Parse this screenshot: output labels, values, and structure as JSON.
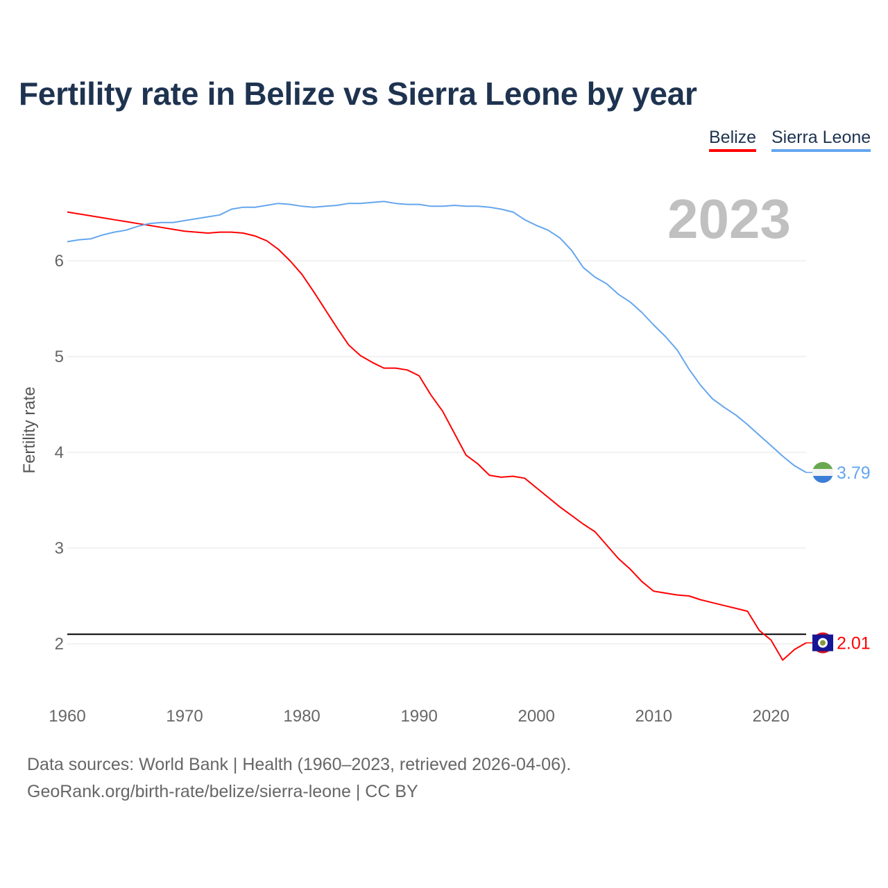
{
  "chart_data": {
    "type": "line",
    "title": "Fertility rate in Belize vs Sierra Leone by year",
    "xlabel": "",
    "ylabel": "Fertility rate",
    "xlim": [
      1960,
      2023
    ],
    "ylim": [
      1.5,
      7
    ],
    "x_ticks": [
      "1960",
      "1970",
      "1980",
      "1990",
      "2000",
      "2010",
      "2020"
    ],
    "y_ticks": [
      "2",
      "3",
      "4",
      "5",
      "6"
    ],
    "grid": true,
    "legend_position": "top-right",
    "current_year_label": "2023",
    "reference_line": {
      "y": 2.1,
      "color": "#000000"
    },
    "x": [
      1960,
      1961,
      1962,
      1963,
      1964,
      1965,
      1966,
      1967,
      1968,
      1969,
      1970,
      1971,
      1972,
      1973,
      1974,
      1975,
      1976,
      1977,
      1978,
      1979,
      1980,
      1981,
      1982,
      1983,
      1984,
      1985,
      1986,
      1987,
      1988,
      1989,
      1990,
      1991,
      1992,
      1993,
      1994,
      1995,
      1996,
      1997,
      1998,
      1999,
      2000,
      2001,
      2002,
      2003,
      2004,
      2005,
      2006,
      2007,
      2008,
      2009,
      2010,
      2011,
      2012,
      2013,
      2014,
      2015,
      2016,
      2017,
      2018,
      2019,
      2020,
      2021,
      2022,
      2023
    ],
    "series": [
      {
        "name": "Belize",
        "color": "#ff0000",
        "end_label": "2.01",
        "values": [
          6.51,
          6.49,
          6.47,
          6.45,
          6.43,
          6.41,
          6.39,
          6.37,
          6.35,
          6.33,
          6.31,
          6.3,
          6.29,
          6.3,
          6.3,
          6.29,
          6.26,
          6.21,
          6.12,
          6.0,
          5.86,
          5.68,
          5.49,
          5.3,
          5.12,
          5.01,
          4.94,
          4.88,
          4.88,
          4.86,
          4.8,
          4.6,
          4.43,
          4.2,
          3.97,
          3.88,
          3.76,
          3.74,
          3.75,
          3.73,
          3.63,
          3.53,
          3.43,
          3.34,
          3.25,
          3.17,
          3.03,
          2.89,
          2.78,
          2.65,
          2.55,
          2.53,
          2.51,
          2.5,
          2.46,
          2.43,
          2.4,
          2.37,
          2.34,
          2.14,
          2.04,
          1.83,
          1.94,
          2.01
        ]
      },
      {
        "name": "Sierra Leone",
        "color": "#64a6ee",
        "end_label": "3.79",
        "values": [
          6.2,
          6.22,
          6.23,
          6.27,
          6.3,
          6.32,
          6.36,
          6.39,
          6.4,
          6.4,
          6.42,
          6.44,
          6.46,
          6.48,
          6.54,
          6.56,
          6.56,
          6.58,
          6.6,
          6.59,
          6.57,
          6.56,
          6.57,
          6.58,
          6.6,
          6.6,
          6.61,
          6.62,
          6.6,
          6.59,
          6.59,
          6.57,
          6.57,
          6.58,
          6.57,
          6.57,
          6.56,
          6.54,
          6.51,
          6.43,
          6.37,
          6.32,
          6.24,
          6.11,
          5.93,
          5.83,
          5.76,
          5.65,
          5.57,
          5.46,
          5.33,
          5.21,
          5.07,
          4.87,
          4.7,
          4.56,
          4.47,
          4.39,
          4.29,
          4.18,
          4.07,
          3.96,
          3.86,
          3.79
        ]
      }
    ]
  },
  "footer": {
    "source": "Data sources: World Bank | Health (1960–2023, retrieved 2026-04-06).",
    "link": "GeoRank.org/birth-rate/belize/sierra-leone | CC BY"
  }
}
